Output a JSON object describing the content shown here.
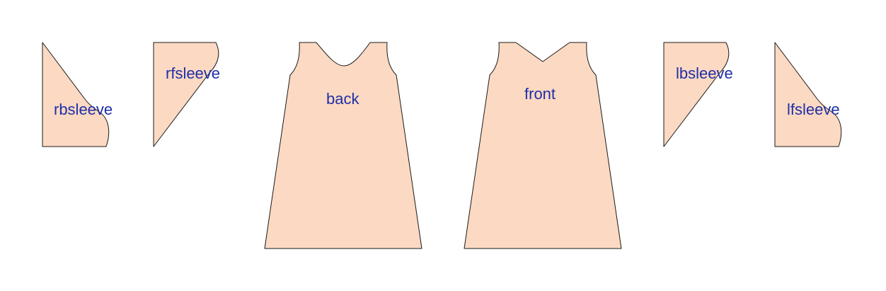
{
  "colors": {
    "piece_fill": "#fcd9c2",
    "outline": "#1a1a1a",
    "label": "#1f2fa8",
    "background": "#ffffff"
  },
  "pieces": [
    {
      "id": "rbsleeve",
      "label": "rbsleeve"
    },
    {
      "id": "rfsleeve",
      "label": "rfsleeve"
    },
    {
      "id": "back",
      "label": "back"
    },
    {
      "id": "front",
      "label": "front"
    },
    {
      "id": "lbsleeve",
      "label": "lbsleeve"
    },
    {
      "id": "lfsleeve",
      "label": "lfsleeve"
    }
  ]
}
